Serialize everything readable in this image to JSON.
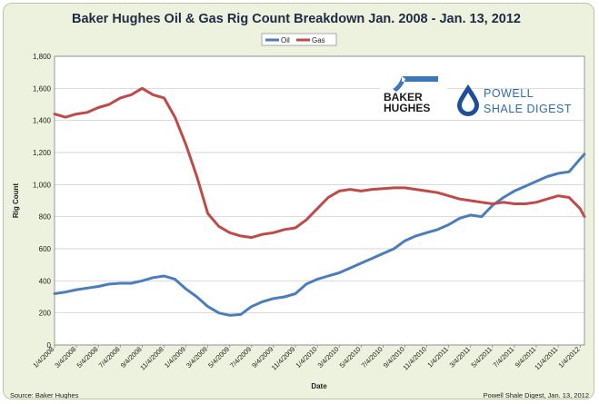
{
  "chart_data": {
    "type": "line",
    "title": "Baker Hughes Oil & Gas Rig Count Breakdown Jan. 2008 - Jan. 13, 2012",
    "xlabel": "Date",
    "ylabel": "Rig Count",
    "ylim": [
      0,
      1800
    ],
    "yticks": [
      "0",
      "200",
      "400",
      "600",
      "800",
      "1,000",
      "1,200",
      "1,400",
      "1,600",
      "1,800"
    ],
    "ytick_values": [
      0,
      200,
      400,
      600,
      800,
      1000,
      1200,
      1400,
      1600,
      1800
    ],
    "x_tick_labels": [
      "1/4/2008",
      "3/4/2008",
      "5/4/2008",
      "7/4/2008",
      "9/4/2008",
      "11/4/2008",
      "1/4/2009",
      "3/4/2009",
      "5/4/2009",
      "7/4/2009",
      "9/4/2009",
      "11/4/2009",
      "1/4/2010",
      "3/4/2010",
      "5/4/2010",
      "7/4/2010",
      "9/4/2010",
      "11/4/2010",
      "1/4/2011",
      "3/4/2011",
      "5/4/2011",
      "7/4/2011",
      "9/4/2011",
      "11/4/2011",
      "1/4/2012"
    ],
    "x_months": [
      0,
      1,
      2,
      3,
      4,
      5,
      6,
      7,
      8,
      9,
      10,
      11,
      12,
      13,
      14,
      15,
      16,
      17,
      18,
      19,
      20,
      21,
      22,
      23,
      24,
      25,
      26,
      27,
      28,
      29,
      30,
      31,
      32,
      33,
      34,
      35,
      36,
      37,
      38,
      39,
      40,
      41,
      42,
      43,
      44,
      45,
      46,
      47,
      48,
      48.4
    ],
    "grid": true,
    "legend_position": "top-center",
    "series": [
      {
        "name": "Oil",
        "color": "#4a7ebb",
        "values": [
          320,
          330,
          345,
          355,
          365,
          380,
          385,
          385,
          400,
          420,
          430,
          410,
          350,
          300,
          240,
          200,
          185,
          190,
          240,
          270,
          290,
          300,
          320,
          380,
          410,
          430,
          450,
          480,
          510,
          540,
          570,
          600,
          650,
          680,
          700,
          720,
          750,
          790,
          810,
          800,
          870,
          920,
          960,
          990,
          1020,
          1050,
          1070,
          1080,
          1160,
          1190
        ]
      },
      {
        "name": "Gas",
        "color": "#be4b48",
        "values": [
          1440,
          1420,
          1440,
          1450,
          1480,
          1500,
          1540,
          1560,
          1600,
          1560,
          1540,
          1420,
          1250,
          1050,
          820,
          740,
          700,
          680,
          670,
          690,
          700,
          720,
          730,
          780,
          850,
          920,
          960,
          970,
          960,
          970,
          975,
          980,
          980,
          970,
          960,
          950,
          930,
          910,
          900,
          890,
          880,
          890,
          880,
          880,
          890,
          910,
          930,
          920,
          850,
          800
        ]
      }
    ]
  },
  "logos": {
    "baker": "BAKER",
    "hughes": "HUGHES",
    "powell": "POWELL",
    "shale_digest": "SHALE DIGEST"
  },
  "footer": {
    "source": "Source: Baker Hughes",
    "credit": "Powell Shale Digest, Jan. 13, 2012"
  },
  "colors": {
    "plot_bg": "#ffffff",
    "frame_bg": "#ecf2dd",
    "grid": "#c8c8c8"
  }
}
